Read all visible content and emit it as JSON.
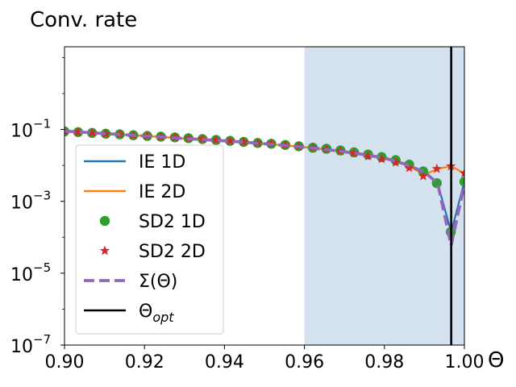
{
  "chart_data": {
    "type": "line",
    "title": "Conv. rate",
    "xlabel": "Θ",
    "ylabel": "",
    "xlim": [
      0.9,
      1.0
    ],
    "ylim_log10": [
      -7,
      1.3
    ],
    "yscale": "log",
    "xticks": [
      {
        "value": 0.9,
        "label": "0.90"
      },
      {
        "value": 0.92,
        "label": "0.92"
      },
      {
        "value": 0.94,
        "label": "0.94"
      },
      {
        "value": 0.96,
        "label": "0.96"
      },
      {
        "value": 0.98,
        "label": "0.98"
      },
      {
        "value": 1.0,
        "label": "1.00"
      }
    ],
    "yticks": [
      {
        "exp": -1,
        "base": "10",
        "sup": "−1"
      },
      {
        "exp": -3,
        "base": "10",
        "sup": "−3"
      },
      {
        "exp": -5,
        "base": "10",
        "sup": "−5"
      },
      {
        "exp": -7,
        "base": "10",
        "sup": "−7"
      }
    ],
    "shaded_region": {
      "x": [
        0.96,
        1.0
      ],
      "color": "#d3e2ee"
    },
    "vline": {
      "x": 0.9967,
      "color": "#000000"
    },
    "legend": {
      "position": "lower-left",
      "entries": [
        {
          "key": "ie1d",
          "label": "IE 1D",
          "style": "line",
          "color": "#1f77b4"
        },
        {
          "key": "ie2d",
          "label": "IE 2D",
          "style": "line",
          "color": "#ff7f0e"
        },
        {
          "key": "sd1d",
          "label": "SD2 1D",
          "style": "circle",
          "color": "#2ca02c"
        },
        {
          "key": "sd2d",
          "label": "SD2 2D",
          "style": "star",
          "color": "#d62728"
        },
        {
          "key": "sigma",
          "label": "Σ(Θ)",
          "style": "dashed",
          "color": "#9467bd"
        },
        {
          "key": "opt",
          "label_main": "Θ",
          "label_sub": "opt",
          "style": "line",
          "color": "#000000"
        }
      ]
    },
    "series": [
      {
        "name": "IE 1D",
        "color": "#1f77b4",
        "x": [
          0.9,
          0.905,
          0.91,
          0.915,
          0.92,
          0.925,
          0.93,
          0.935,
          0.94,
          0.945,
          0.95,
          0.955,
          0.96,
          0.965,
          0.97,
          0.975,
          0.98,
          0.985,
          0.99,
          0.9933,
          0.9967,
          1.0
        ],
        "y": [
          0.09,
          0.083,
          0.077,
          0.071,
          0.066,
          0.061,
          0.056,
          0.052,
          0.048,
          0.044,
          0.04,
          0.036,
          0.032,
          0.028,
          0.024,
          0.02,
          0.016,
          0.011,
          0.0065,
          0.0032,
          0.00014,
          0.0035
        ]
      },
      {
        "name": "IE 2D",
        "color": "#ff7f0e",
        "x": [
          0.9,
          0.905,
          0.91,
          0.915,
          0.92,
          0.925,
          0.93,
          0.935,
          0.94,
          0.945,
          0.95,
          0.955,
          0.96,
          0.965,
          0.97,
          0.975,
          0.98,
          0.985,
          0.99,
          0.9933,
          0.9967,
          1.0
        ],
        "y": [
          0.09,
          0.083,
          0.077,
          0.071,
          0.066,
          0.061,
          0.056,
          0.052,
          0.048,
          0.044,
          0.04,
          0.036,
          0.032,
          0.028,
          0.024,
          0.02,
          0.016,
          0.011,
          0.0055,
          0.008,
          0.0095,
          0.006
        ]
      },
      {
        "name": "SD2 1D",
        "color": "#2ca02c",
        "marker": "circle",
        "x": [
          0.9,
          0.9034,
          0.9069,
          0.9103,
          0.9138,
          0.9172,
          0.9207,
          0.9241,
          0.9276,
          0.931,
          0.9345,
          0.9379,
          0.9414,
          0.9448,
          0.9483,
          0.9517,
          0.9552,
          0.9586,
          0.9621,
          0.9655,
          0.969,
          0.9724,
          0.9759,
          0.9793,
          0.9828,
          0.9862,
          0.9897,
          0.9931,
          0.9966,
          1.0
        ],
        "y": [
          0.088,
          0.084,
          0.08,
          0.076,
          0.073,
          0.069,
          0.066,
          0.063,
          0.06,
          0.057,
          0.054,
          0.051,
          0.048,
          0.045,
          0.042,
          0.04,
          0.037,
          0.034,
          0.031,
          0.029,
          0.026,
          0.023,
          0.02,
          0.017,
          0.014,
          0.0105,
          0.0068,
          0.0032,
          0.00014,
          0.0035
        ]
      },
      {
        "name": "SD2 2D",
        "color": "#d62728",
        "marker": "star",
        "x": [
          0.9,
          0.9034,
          0.9069,
          0.9103,
          0.9138,
          0.9172,
          0.9207,
          0.9241,
          0.9276,
          0.931,
          0.9345,
          0.9379,
          0.9414,
          0.9448,
          0.9483,
          0.9517,
          0.9552,
          0.9586,
          0.9621,
          0.9655,
          0.969,
          0.9724,
          0.9759,
          0.9793,
          0.9828,
          0.9862,
          0.9897,
          0.9931,
          0.9966,
          1.0
        ],
        "y": [
          0.088,
          0.084,
          0.08,
          0.076,
          0.073,
          0.069,
          0.066,
          0.063,
          0.06,
          0.057,
          0.054,
          0.051,
          0.048,
          0.045,
          0.042,
          0.04,
          0.037,
          0.034,
          0.031,
          0.028,
          0.025,
          0.022,
          0.018,
          0.015,
          0.012,
          0.0085,
          0.005,
          0.008,
          0.0095,
          0.006
        ]
      },
      {
        "name": "Σ(Θ)",
        "color": "#9467bd",
        "style": "dashed",
        "x": [
          0.9,
          0.905,
          0.91,
          0.915,
          0.92,
          0.925,
          0.93,
          0.935,
          0.94,
          0.945,
          0.95,
          0.955,
          0.96,
          0.965,
          0.97,
          0.975,
          0.98,
          0.985,
          0.99,
          0.9933,
          0.9967,
          1.0
        ],
        "y": [
          0.09,
          0.083,
          0.077,
          0.071,
          0.066,
          0.061,
          0.056,
          0.052,
          0.048,
          0.044,
          0.04,
          0.036,
          0.032,
          0.028,
          0.024,
          0.02,
          0.016,
          0.011,
          0.0065,
          0.0032,
          6e-05,
          0.003
        ]
      }
    ]
  }
}
